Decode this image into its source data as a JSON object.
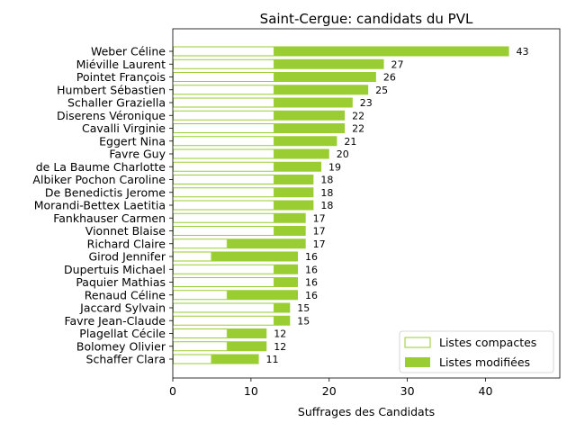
{
  "chart_data": {
    "type": "bar",
    "orientation": "horizontal",
    "stacked": true,
    "title": "Saint-Cergue: candidats du PVL",
    "xlabel": "Suffrages des Candidats",
    "ylabel": "",
    "xlim": [
      0,
      49.5
    ],
    "xticks": [
      0,
      10,
      20,
      30,
      40
    ],
    "grid": false,
    "legend_position": "bottom-right",
    "categories": [
      "Weber Céline",
      "Miéville Laurent",
      "Pointet François",
      "Humbert Sébastien",
      "Schaller Graziella",
      "Diserens Véronique",
      "Cavalli Virginie",
      "Eggert Nina",
      "Favre Guy",
      "de La Baume Charlotte",
      "Albiker Pochon Caroline",
      "De Benedictis Jerome",
      "Morandi-Bettex Laetitia",
      "Fankhauser Carmen",
      "Vionnet Blaise",
      "Richard Claire",
      "Girod Jennifer",
      "Dupertuis Michael",
      "Paquier Mathias",
      "Renaud Céline",
      "Jaccard Sylvain",
      "Favre Jean-Claude",
      "Plagellat Cécile",
      "Bolomey Olivier",
      "Schaffer Clara"
    ],
    "series": [
      {
        "name": "Listes compactes",
        "color": "#9acd32",
        "style": "outline",
        "values": [
          13,
          13,
          13,
          13,
          13,
          13,
          13,
          13,
          13,
          13,
          13,
          13,
          13,
          13,
          13,
          7,
          5,
          13,
          13,
          7,
          13,
          13,
          7,
          7,
          5
        ]
      },
      {
        "name": "Listes modifiées",
        "color": "#9acd32",
        "style": "filled",
        "values": [
          30,
          14,
          13,
          12,
          10,
          9,
          9,
          8,
          7,
          6,
          5,
          5,
          5,
          4,
          4,
          10,
          11,
          3,
          3,
          9,
          2,
          2,
          5,
          5,
          6
        ]
      }
    ],
    "totals": [
      43,
      27,
      26,
      25,
      23,
      22,
      22,
      21,
      20,
      19,
      18,
      18,
      18,
      17,
      17,
      17,
      16,
      16,
      16,
      16,
      15,
      15,
      12,
      12,
      11
    ]
  }
}
